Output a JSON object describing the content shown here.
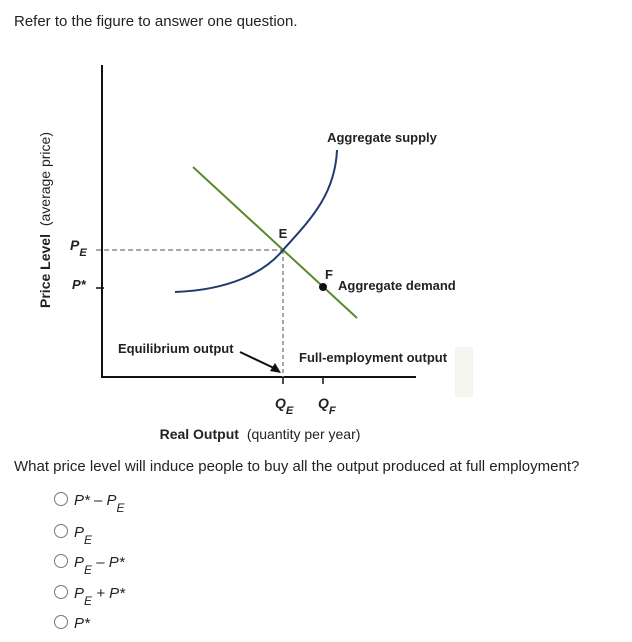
{
  "prompt": "Refer to the figure to answer one question.",
  "figure": {
    "y_axis_label": {
      "bold": "Price Level",
      "rest": "(average price)"
    },
    "price_labels": [
      [
        "P",
        {
          "sub": "E"
        }
      ],
      [
        "P*"
      ]
    ],
    "curves": {
      "supply": "Aggregate supply",
      "demand": "Aggregate demand"
    },
    "points": [
      "E",
      "F"
    ],
    "annotations": [
      "Equilibrium output",
      "Full-employment output"
    ],
    "quantity_labels": [
      [
        "Q",
        {
          "sub": "E"
        }
      ],
      [
        "Q",
        {
          "sub": "F"
        }
      ]
    ],
    "x_axis_label": {
      "bold": "Real Output",
      "rest": "(quantity per year)"
    }
  },
  "question": "What price level will induce people to buy all the output produced at full employment?",
  "options": [
    [
      "P* – P",
      {
        "sub": "E"
      }
    ],
    [
      "P",
      {
        "sub": "E"
      }
    ],
    [
      "P",
      {
        "sub": "E"
      },
      " – P*"
    ],
    [
      "P",
      {
        "sub": "E"
      },
      " + P*"
    ],
    [
      "P*"
    ]
  ]
}
